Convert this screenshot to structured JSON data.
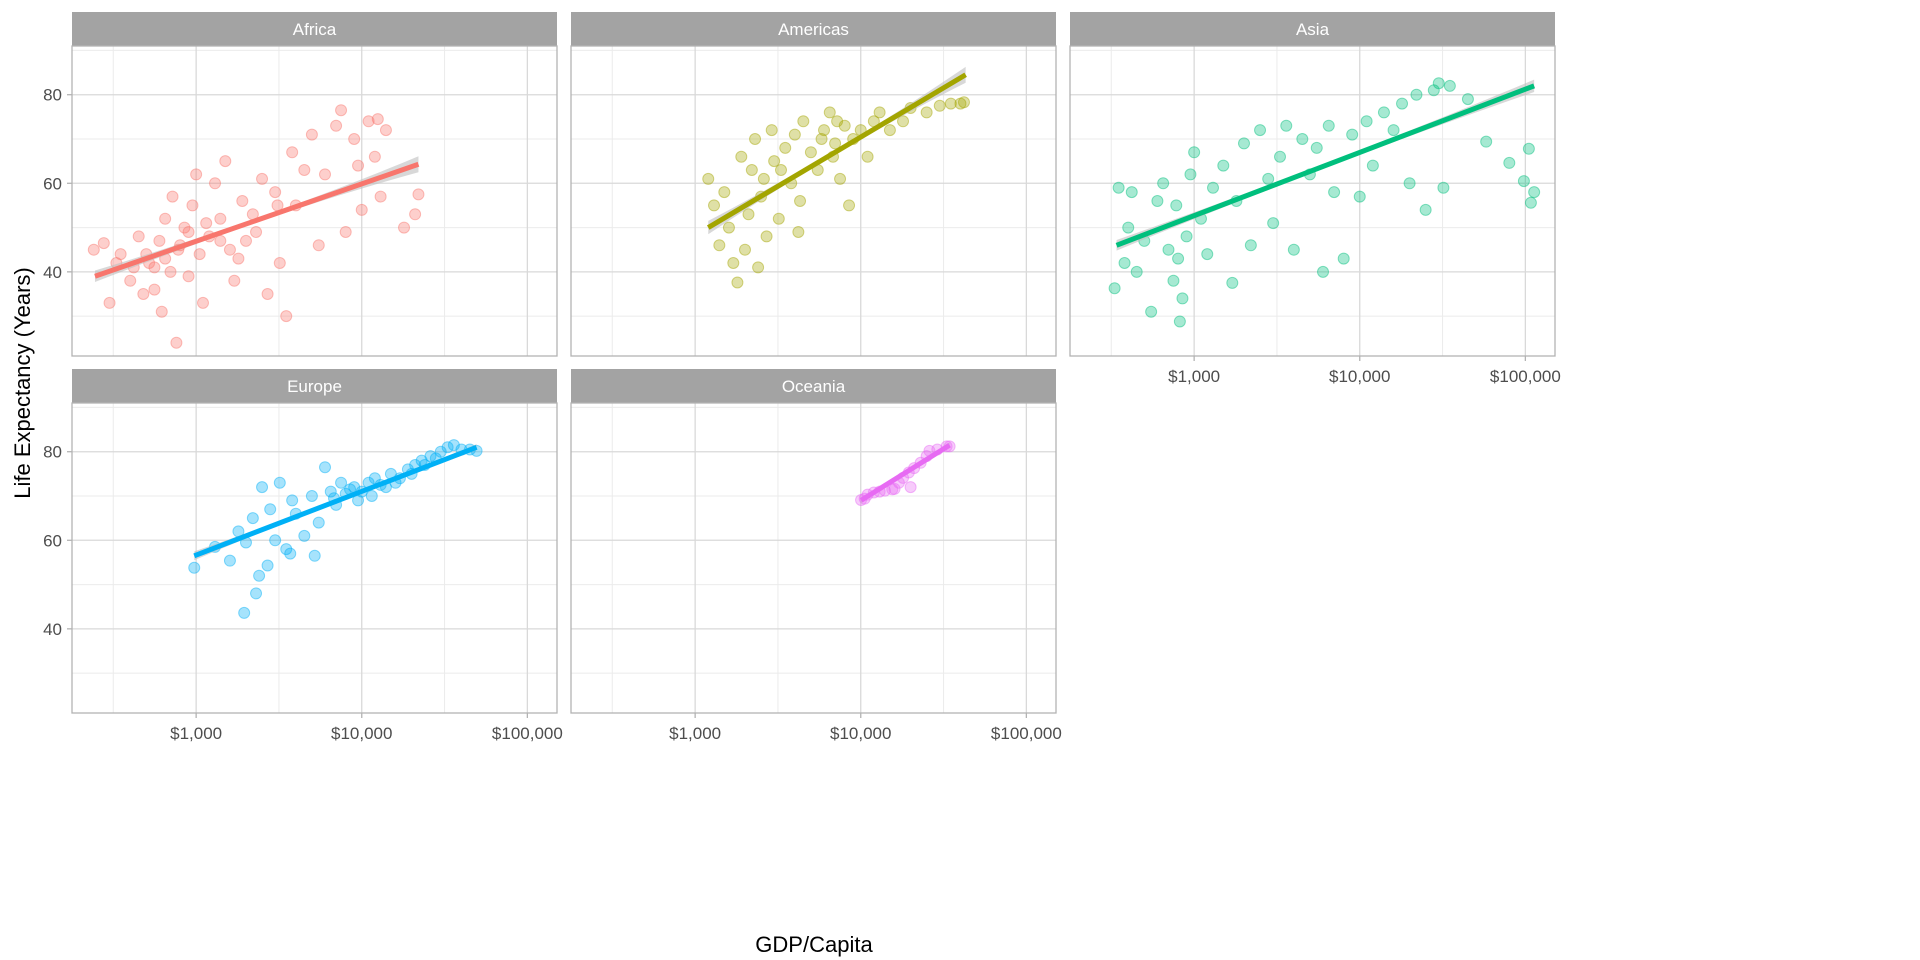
{
  "chart_data": {
    "type": "scatter",
    "title": "",
    "xlabel": "GDP/Capita",
    "ylabel": "Life Expectancy (Years)",
    "x_scale": "log10",
    "xlim": [
      178,
      151000
    ],
    "ylim": [
      21,
      91
    ],
    "x_ticks": [
      {
        "value": 1000,
        "label": "$1,000"
      },
      {
        "value": 10000,
        "label": "$10,000"
      },
      {
        "value": 100000,
        "label": "$100,000"
      }
    ],
    "x_minor_ticks": [
      316,
      3162,
      31623
    ],
    "y_ticks": [
      {
        "value": 40,
        "label": "40"
      },
      {
        "value": 60,
        "label": "60"
      },
      {
        "value": 80,
        "label": "80"
      }
    ],
    "y_minor_ticks": [
      30,
      50,
      70,
      90
    ],
    "grid": true,
    "legend": "none",
    "band_color": "#bebebe",
    "facets": [
      {
        "name": "Africa",
        "color": "#F8766D",
        "fit": {
          "x": [
            245,
            22000
          ],
          "y": [
            39,
            64.3
          ],
          "ci": [
            1.3,
            0.5,
            1.8
          ]
        },
        "points": [
          [
            241,
            45
          ],
          [
            277,
            46.5
          ],
          [
            300,
            33
          ],
          [
            330,
            42
          ],
          [
            350,
            44
          ],
          [
            400,
            38
          ],
          [
            420,
            41
          ],
          [
            450,
            48
          ],
          [
            480,
            35
          ],
          [
            500,
            44
          ],
          [
            520,
            42
          ],
          [
            560,
            36
          ],
          [
            600,
            47
          ],
          [
            620,
            31
          ],
          [
            650,
            52
          ],
          [
            700,
            40
          ],
          [
            720,
            57
          ],
          [
            760,
            24
          ],
          [
            800,
            46
          ],
          [
            850,
            50
          ],
          [
            900,
            39
          ],
          [
            950,
            55
          ],
          [
            1000,
            62
          ],
          [
            1050,
            44
          ],
          [
            1100,
            33
          ],
          [
            1200,
            48
          ],
          [
            1300,
            60
          ],
          [
            1400,
            52
          ],
          [
            1500,
            65
          ],
          [
            1600,
            45
          ],
          [
            1700,
            38
          ],
          [
            1900,
            56
          ],
          [
            2000,
            47
          ],
          [
            2200,
            53
          ],
          [
            2500,
            61
          ],
          [
            2700,
            35
          ],
          [
            3000,
            58
          ],
          [
            3200,
            42
          ],
          [
            3500,
            30
          ],
          [
            3800,
            67
          ],
          [
            4000,
            55
          ],
          [
            4500,
            63
          ],
          [
            5000,
            71
          ],
          [
            5500,
            46
          ],
          [
            6000,
            62
          ],
          [
            7000,
            73
          ],
          [
            7500,
            76.5
          ],
          [
            8000,
            49
          ],
          [
            9000,
            70
          ],
          [
            10000,
            54
          ],
          [
            11000,
            74
          ],
          [
            12000,
            66
          ],
          [
            13000,
            57
          ],
          [
            14000,
            72
          ],
          [
            18000,
            50
          ],
          [
            21000,
            53
          ],
          [
            22000,
            57.5
          ],
          [
            12500,
            74.5
          ],
          [
            9500,
            64
          ],
          [
            650,
            43
          ],
          [
            900,
            49
          ],
          [
            1150,
            51
          ],
          [
            1400,
            47
          ],
          [
            780,
            45
          ],
          [
            560,
            41
          ],
          [
            2300,
            49
          ],
          [
            3100,
            55
          ],
          [
            1800,
            43
          ]
        ]
      },
      {
        "name": "Americas",
        "color": "#A3A500",
        "fit": {
          "x": [
            1200,
            43000
          ],
          "y": [
            50,
            84.5
          ],
          "ci": [
            1.5,
            0.5,
            1.8
          ]
        },
        "points": [
          [
            1200,
            61
          ],
          [
            1300,
            55
          ],
          [
            1400,
            46
          ],
          [
            1500,
            58
          ],
          [
            1600,
            50
          ],
          [
            1700,
            42
          ],
          [
            1800,
            37.6
          ],
          [
            1900,
            66
          ],
          [
            2000,
            45
          ],
          [
            2100,
            53
          ],
          [
            2200,
            63
          ],
          [
            2300,
            70
          ],
          [
            2400,
            41
          ],
          [
            2500,
            57
          ],
          [
            2700,
            48
          ],
          [
            2900,
            72
          ],
          [
            3000,
            65
          ],
          [
            3200,
            52
          ],
          [
            3500,
            68
          ],
          [
            3800,
            60
          ],
          [
            4000,
            71
          ],
          [
            4300,
            56
          ],
          [
            4500,
            74
          ],
          [
            5000,
            67
          ],
          [
            5500,
            63
          ],
          [
            6000,
            72
          ],
          [
            6500,
            76
          ],
          [
            7000,
            69
          ],
          [
            7500,
            61
          ],
          [
            8000,
            73
          ],
          [
            8500,
            55
          ],
          [
            9000,
            70
          ],
          [
            10000,
            72
          ],
          [
            11000,
            66
          ],
          [
            12000,
            74
          ],
          [
            13000,
            76
          ],
          [
            15000,
            72
          ],
          [
            18000,
            74
          ],
          [
            20000,
            77
          ],
          [
            25000,
            76
          ],
          [
            30000,
            77.5
          ],
          [
            35000,
            78
          ],
          [
            40000,
            78
          ],
          [
            42000,
            78.3
          ],
          [
            4200,
            49
          ],
          [
            3300,
            63
          ],
          [
            5800,
            70
          ],
          [
            7200,
            74
          ],
          [
            6800,
            66
          ],
          [
            2600,
            61
          ]
        ]
      },
      {
        "name": "Asia",
        "color": "#00BF7D",
        "fit": {
          "x": [
            340,
            113000
          ],
          "y": [
            46,
            82
          ],
          "ci": [
            1.2,
            0.5,
            1.4
          ]
        },
        "points": [
          [
            331,
            36.3
          ],
          [
            350,
            59
          ],
          [
            380,
            42
          ],
          [
            400,
            50
          ],
          [
            420,
            58
          ],
          [
            450,
            40
          ],
          [
            500,
            47
          ],
          [
            550,
            31
          ],
          [
            600,
            56
          ],
          [
            650,
            60
          ],
          [
            700,
            45
          ],
          [
            750,
            38
          ],
          [
            780,
            55
          ],
          [
            800,
            43
          ],
          [
            820,
            28.8
          ],
          [
            850,
            34
          ],
          [
            900,
            48
          ],
          [
            950,
            62
          ],
          [
            1000,
            67
          ],
          [
            1100,
            52
          ],
          [
            1200,
            44
          ],
          [
            1300,
            59
          ],
          [
            1500,
            64
          ],
          [
            1700,
            37.5
          ],
          [
            1800,
            56
          ],
          [
            2000,
            69
          ],
          [
            2200,
            46
          ],
          [
            2500,
            72
          ],
          [
            2800,
            61
          ],
          [
            3000,
            51
          ],
          [
            3300,
            66
          ],
          [
            3600,
            73
          ],
          [
            4000,
            45
          ],
          [
            4500,
            70
          ],
          [
            5000,
            62
          ],
          [
            5500,
            68
          ],
          [
            6000,
            40
          ],
          [
            6500,
            73
          ],
          [
            7000,
            58
          ],
          [
            8000,
            43
          ],
          [
            9000,
            71
          ],
          [
            10000,
            57
          ],
          [
            11000,
            74
          ],
          [
            12000,
            64
          ],
          [
            14000,
            76
          ],
          [
            16000,
            72
          ],
          [
            18000,
            78
          ],
          [
            20000,
            60
          ],
          [
            22000,
            80
          ],
          [
            25000,
            54
          ],
          [
            28000,
            81
          ],
          [
            30000,
            82.6
          ],
          [
            32000,
            59
          ],
          [
            35000,
            82
          ],
          [
            45000,
            79
          ],
          [
            58000,
            69.4
          ],
          [
            80000,
            64.6
          ],
          [
            98000,
            60.5
          ],
          [
            108000,
            55.6
          ],
          [
            113000,
            58
          ],
          [
            105000,
            67.8
          ]
        ]
      },
      {
        "name": "Europe",
        "color": "#00B0F6",
        "fit": {
          "x": [
            974,
            49357
          ],
          "y": [
            56.5,
            81
          ],
          "ci": [
            1.0,
            0.3,
            0.7
          ]
        },
        "points": [
          [
            974,
            53.8
          ],
          [
            1300,
            58.5
          ],
          [
            1600,
            55.4
          ],
          [
            1800,
            62
          ],
          [
            1950,
            43.6
          ],
          [
            2000,
            59.5
          ],
          [
            2200,
            65
          ],
          [
            2300,
            48
          ],
          [
            2400,
            52
          ],
          [
            2500,
            72
          ],
          [
            2700,
            54.3
          ],
          [
            2800,
            67
          ],
          [
            3000,
            60
          ],
          [
            3200,
            73
          ],
          [
            3500,
            58
          ],
          [
            3800,
            69
          ],
          [
            4000,
            66
          ],
          [
            4500,
            61
          ],
          [
            5000,
            70
          ],
          [
            5500,
            64
          ],
          [
            6000,
            76.5
          ],
          [
            6500,
            71
          ],
          [
            7000,
            68
          ],
          [
            7500,
            73
          ],
          [
            8000,
            70.5
          ],
          [
            9000,
            72
          ],
          [
            10000,
            71
          ],
          [
            11000,
            73
          ],
          [
            12000,
            74
          ],
          [
            13000,
            72.5
          ],
          [
            15000,
            75
          ],
          [
            17000,
            74
          ],
          [
            19000,
            76
          ],
          [
            21000,
            77
          ],
          [
            23000,
            78
          ],
          [
            26000,
            79
          ],
          [
            28000,
            78.5
          ],
          [
            30000,
            80
          ],
          [
            33000,
            81
          ],
          [
            36000,
            81.5
          ],
          [
            40000,
            80.5
          ],
          [
            45000,
            80.5
          ],
          [
            49357,
            80.2
          ],
          [
            5200,
            56.5
          ],
          [
            3700,
            57
          ],
          [
            9500,
            69
          ],
          [
            11500,
            70
          ],
          [
            14000,
            72
          ],
          [
            16000,
            73
          ],
          [
            20000,
            75
          ],
          [
            24000,
            77
          ],
          [
            8500,
            71.5
          ],
          [
            6800,
            69.5
          ]
        ]
      },
      {
        "name": "Oceania",
        "color": "#E76BF3",
        "fit": {
          "x": [
            10040,
            34400
          ],
          "y": [
            69,
            81.5
          ],
          "ci": [
            0.6,
            0.3,
            0.6
          ]
        },
        "points": [
          [
            10040,
            69.1
          ],
          [
            10560,
            69.4
          ],
          [
            11000,
            70.3
          ],
          [
            12000,
            70.8
          ],
          [
            13000,
            71
          ],
          [
            14000,
            71.2
          ],
          [
            15500,
            71.5
          ],
          [
            17000,
            73
          ],
          [
            18000,
            74.1
          ],
          [
            19500,
            75.3
          ],
          [
            21000,
            76.3
          ],
          [
            23000,
            77.5
          ],
          [
            25000,
            79
          ],
          [
            26000,
            80.2
          ],
          [
            29000,
            80.5
          ],
          [
            33000,
            81.2
          ],
          [
            34400,
            81.2
          ],
          [
            20000,
            72
          ],
          [
            16000,
            71.6
          ]
        ]
      }
    ]
  }
}
